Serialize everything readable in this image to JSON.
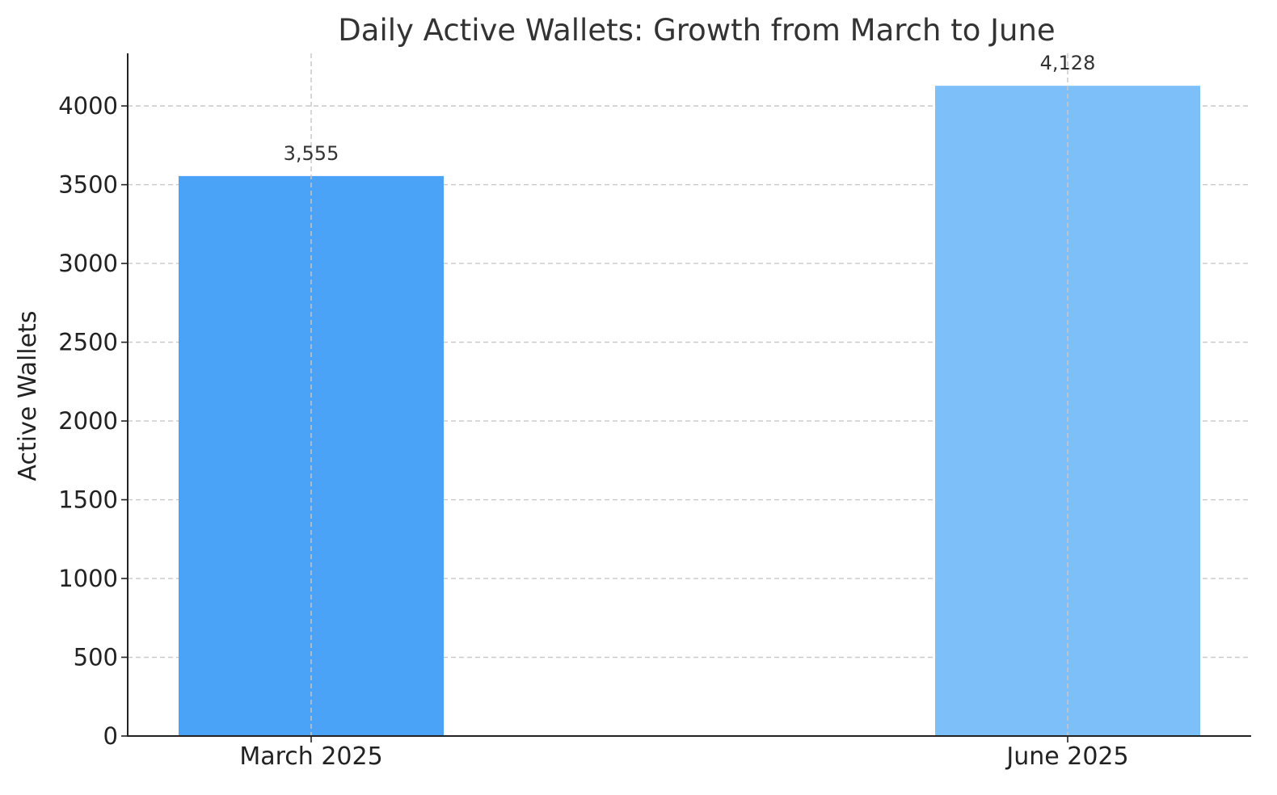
{
  "chart_data": {
    "type": "bar",
    "title": "Daily Active Wallets: Growth from March to June",
    "xlabel": "",
    "ylabel": "Active Wallets",
    "categories": [
      "March 2025",
      "June 2025"
    ],
    "values": [
      3555,
      4128
    ],
    "data_labels": [
      "3,555",
      "4,128"
    ],
    "colors": [
      "#4aa3f7",
      "#7dc0f9"
    ],
    "ylim": [
      0,
      4334
    ],
    "yticks": [
      0,
      500,
      1000,
      1500,
      2000,
      2500,
      3000,
      3500,
      4000
    ],
    "grid": true,
    "legend": "none"
  }
}
